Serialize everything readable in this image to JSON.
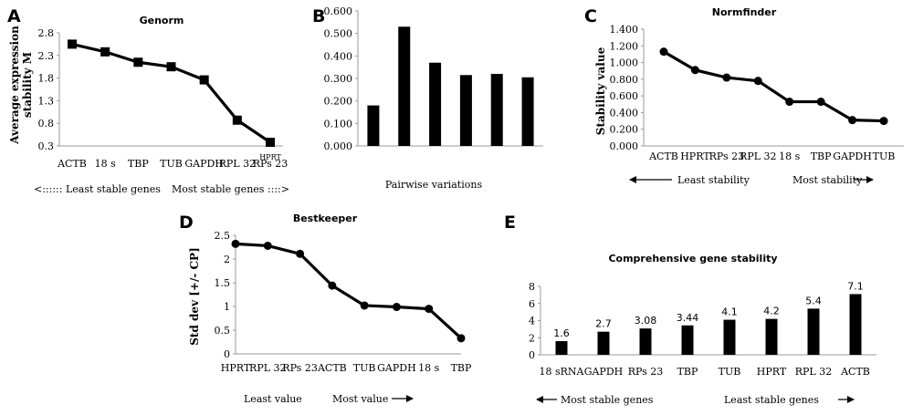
{
  "panels": {
    "A": "A",
    "B": "B",
    "C": "C",
    "D": "D",
    "E": "E"
  },
  "annotations": {
    "a_left": "<:::::: Least stable genes",
    "a_right": "Most stable genes  ::::>",
    "a_extra": "HPRT",
    "c_left": "Least stability",
    "c_right": "Most stability",
    "d_left": "Least value",
    "d_right": "Most value",
    "e_left": "Most stable genes",
    "e_right": "Least stable genes"
  },
  "chart_data": [
    {
      "id": "A",
      "type": "line",
      "title": "Genorm",
      "ylabel": "Average expression stability M",
      "xlabel": "",
      "categories": [
        "ACTB",
        "18 s",
        "TBP",
        "TUB",
        "GAPDH",
        "RPL 32",
        "RPs 23"
      ],
      "values": [
        2.55,
        2.38,
        2.15,
        2.05,
        1.76,
        0.87,
        0.38
      ],
      "ylim": [
        0.3,
        2.8
      ],
      "yticks": [
        "0.3",
        "0.8",
        "1.3",
        "1.8",
        "2.3",
        "2.8"
      ],
      "marker": "square",
      "grid": false
    },
    {
      "id": "B",
      "type": "bar",
      "title": "",
      "xlabel": "Pairwise variations",
      "ylabel": "",
      "categories": [
        "",
        "",
        "",
        "",
        "",
        ""
      ],
      "values": [
        0.18,
        0.53,
        0.37,
        0.315,
        0.32,
        0.305
      ],
      "ylim": [
        0,
        0.6
      ],
      "yticks": [
        "0.000",
        "0.100",
        "0.200",
        "0.300",
        "0.400",
        "0.500",
        "0.600"
      ],
      "grid": false
    },
    {
      "id": "C",
      "type": "line",
      "title": "Normfinder",
      "ylabel": "Stability value",
      "xlabel": "",
      "categories": [
        "ACTB",
        "HPRT",
        "RPs 23",
        "RPL 32",
        "18 s",
        "TBP",
        "GAPDH",
        "TUB"
      ],
      "values": [
        1.13,
        0.91,
        0.82,
        0.78,
        0.53,
        0.53,
        0.31,
        0.3
      ],
      "ylim": [
        0,
        1.4
      ],
      "yticks": [
        "0.000",
        "0.200",
        "0.400",
        "0.600",
        "0.800",
        "1.000",
        "1.200",
        "1.400"
      ],
      "marker": "circle",
      "grid": false
    },
    {
      "id": "D",
      "type": "line",
      "title": "Bestkeeper",
      "ylabel": "Std dev [+/- CP]",
      "xlabel": "",
      "categories": [
        "HPRT",
        "RPL 32",
        "RPs 23",
        "ACTB",
        "TUB",
        "GAPDH",
        "18 s",
        "TBP"
      ],
      "values": [
        2.32,
        2.28,
        2.11,
        1.44,
        1.02,
        0.99,
        0.95,
        0.33
      ],
      "ylim": [
        0,
        2.5
      ],
      "yticks": [
        "0",
        "0.5",
        "1",
        "1.5",
        "2",
        "2.5"
      ],
      "marker": "circle",
      "grid": false
    },
    {
      "id": "E",
      "type": "bar",
      "title": "Comprehensive gene stability",
      "xlabel": "",
      "ylabel": "",
      "categories": [
        "18 sRNA",
        "GAPDH",
        "RPs 23",
        "TBP",
        "TUB",
        "HPRT",
        "RPL 32",
        "ACTB"
      ],
      "values": [
        1.6,
        2.7,
        3.08,
        3.44,
        4.1,
        4.2,
        5.4,
        7.1
      ],
      "data_labels": [
        "1.6",
        "2.7",
        "3.08",
        "3.44",
        "4.1",
        "4.2",
        "5.4",
        "7.1"
      ],
      "ylim": [
        0,
        8
      ],
      "yticks": [
        "0",
        "2",
        "4",
        "6",
        "8"
      ],
      "grid": false
    }
  ]
}
